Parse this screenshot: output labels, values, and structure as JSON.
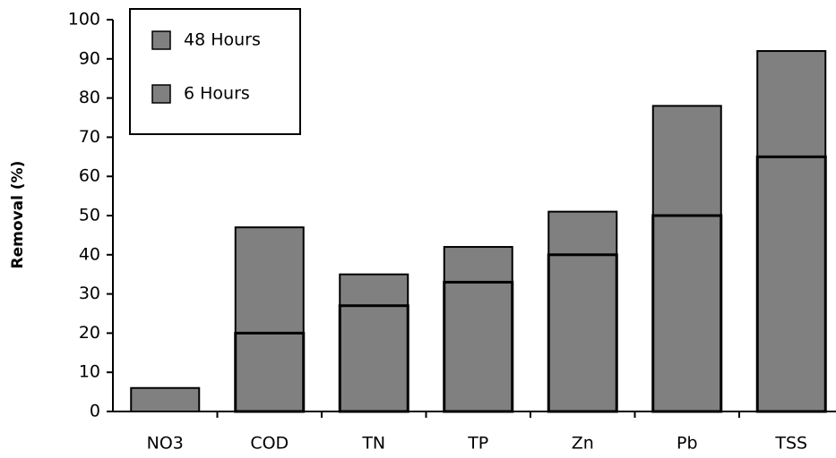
{
  "chart_data": {
    "type": "bar",
    "barmode": "overlay",
    "y_label": "Removal (%)",
    "categories": [
      "NO3",
      "COD",
      "TN",
      "TP",
      "Zn",
      "Pb",
      "TSS"
    ],
    "series": [
      {
        "name": "48 Hours",
        "color": "#808080",
        "values": [
          6,
          47,
          35,
          42,
          51,
          78,
          92
        ]
      },
      {
        "name": "6 Hours",
        "color": "#808080",
        "values": [
          null,
          20,
          27,
          33,
          40,
          50,
          65
        ]
      }
    ],
    "ylim": [
      0,
      100
    ],
    "yticks": [
      0,
      10,
      20,
      30,
      40,
      50,
      60,
      70,
      80,
      90,
      100
    ],
    "legend": "upper-left"
  }
}
